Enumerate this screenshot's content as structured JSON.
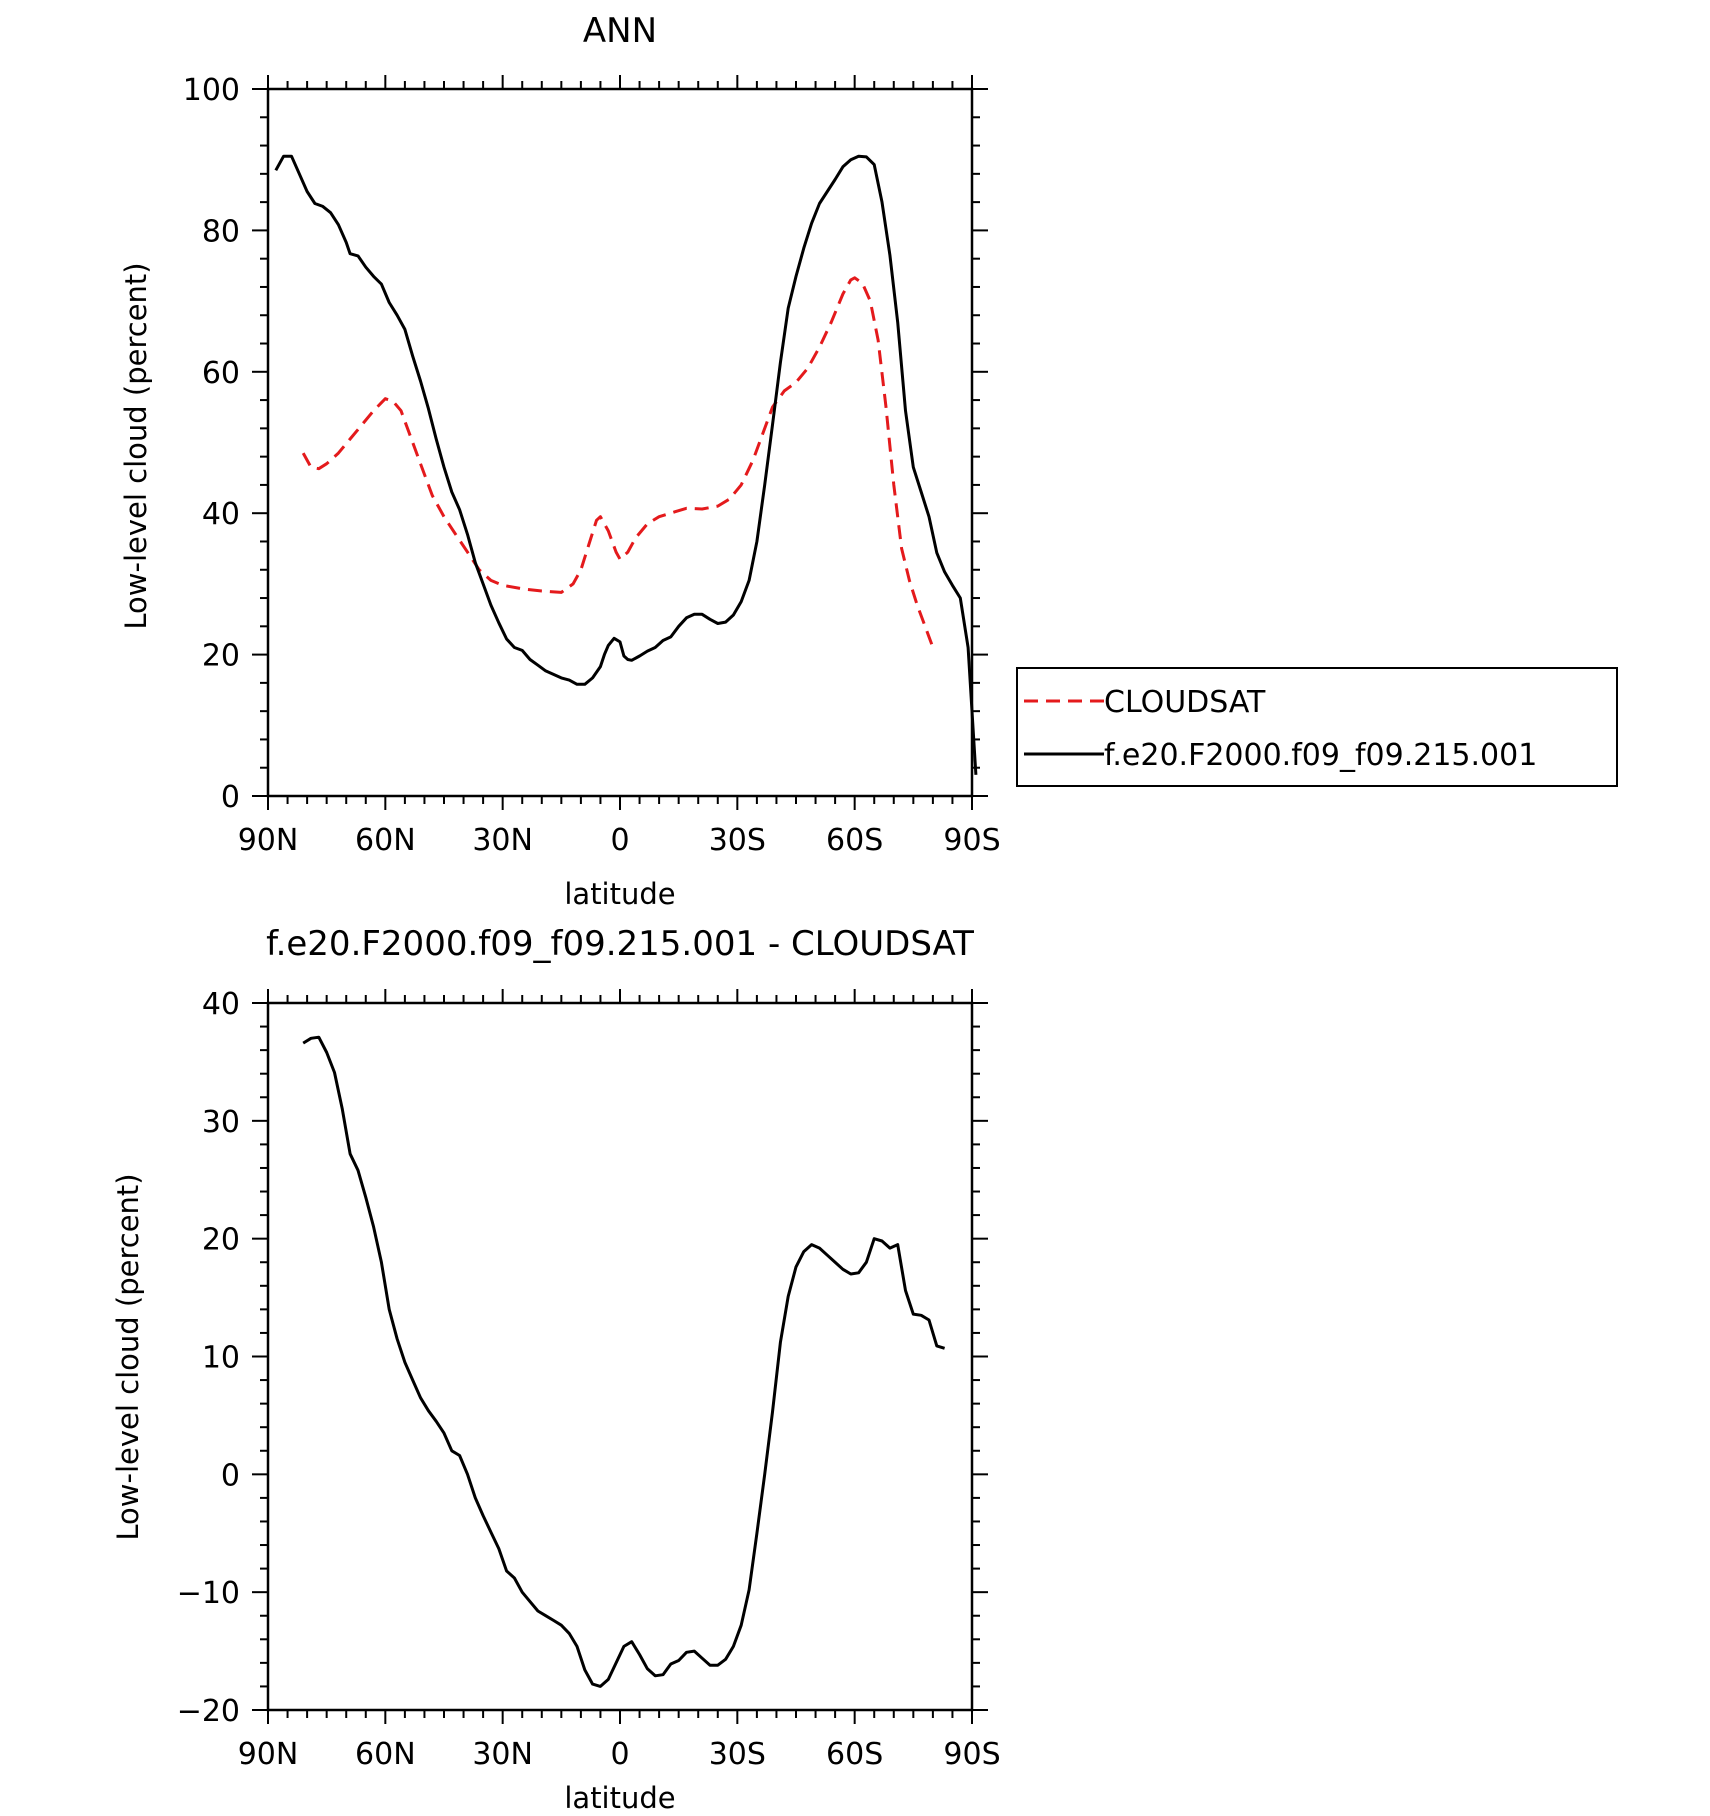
{
  "chart_data": [
    {
      "type": "line",
      "title": "ANN",
      "xlabel": "latitude",
      "ylabel": "Low-level cloud (percent)",
      "xlim": [
        -90,
        90
      ],
      "ylim": [
        0,
        100
      ],
      "x_axis_note": "latitude runs from 90N (left) to 90S (right); values below are latitude in degrees, north positive",
      "xticks": [
        90,
        60,
        30,
        0,
        -30,
        -60,
        -90
      ],
      "xtick_labels": [
        "90N",
        "60N",
        "30N",
        "0",
        "30S",
        "60S",
        "90S"
      ],
      "yticks": [
        0,
        20,
        40,
        60,
        80,
        100
      ],
      "ytick_labels": [
        "0",
        "20",
        "40",
        "60",
        "80",
        "100"
      ],
      "legend_position": "right-outside",
      "series": [
        {
          "name": "CLOUDSAT",
          "color": "#e41a1c",
          "dash": "dashed",
          "points": [
            [
              81,
              48.5
            ],
            [
              79,
              46.5
            ],
            [
              77,
              46.3
            ],
            [
              75,
              47
            ],
            [
              72,
              48.5
            ],
            [
              69,
              50.5
            ],
            [
              66,
              52.5
            ],
            [
              63,
              54.5
            ],
            [
              60,
              56.2
            ],
            [
              58,
              55.8
            ],
            [
              56,
              54.5
            ],
            [
              54,
              51.5
            ],
            [
              51,
              47
            ],
            [
              48,
              42.5
            ],
            [
              45,
              39.5
            ],
            [
              42,
              37
            ],
            [
              39,
              34.5
            ],
            [
              36,
              32
            ],
            [
              33,
              30.5
            ],
            [
              30,
              29.8
            ],
            [
              25,
              29.3
            ],
            [
              20,
              29
            ],
            [
              15,
              28.8
            ],
            [
              12,
              30
            ],
            [
              10,
              32
            ],
            [
              8,
              35.5
            ],
            [
              6,
              39
            ],
            [
              5,
              39.5
            ],
            [
              3,
              37.5
            ],
            [
              1,
              34.5
            ],
            [
              0,
              33.5
            ],
            [
              -2,
              34.5
            ],
            [
              -4,
              36.5
            ],
            [
              -7,
              38.5
            ],
            [
              -10,
              39.5
            ],
            [
              -14,
              40.2
            ],
            [
              -17,
              40.7
            ],
            [
              -21,
              40.6
            ],
            [
              -25,
              41
            ],
            [
              -28,
              42
            ],
            [
              -31,
              44
            ],
            [
              -34,
              47.5
            ],
            [
              -37,
              52
            ],
            [
              -39,
              55
            ],
            [
              -42,
              57.3
            ],
            [
              -45,
              58.5
            ],
            [
              -48,
              60.5
            ],
            [
              -51,
              63.5
            ],
            [
              -54,
              67
            ],
            [
              -57,
              71
            ],
            [
              -59,
              73
            ],
            [
              -60,
              73.3
            ],
            [
              -62,
              72.5
            ],
            [
              -64,
              70
            ],
            [
              -66,
              64.5
            ],
            [
              -68,
              55
            ],
            [
              -70,
              44
            ],
            [
              -72,
              35
            ],
            [
              -74,
              30.5
            ],
            [
              -76,
              27
            ],
            [
              -78,
              24
            ],
            [
              -80,
              21
            ]
          ]
        },
        {
          "name": "f.e20.F2000.f09_f09.215.001",
          "color": "#000000",
          "dash": "solid",
          "points": [
            [
              88,
              88.5
            ],
            [
              86,
              90.5
            ],
            [
              84,
              90.5
            ],
            [
              82,
              88
            ],
            [
              80,
              85.5
            ],
            [
              78,
              83.8
            ],
            [
              76,
              83.4
            ],
            [
              74,
              82.5
            ],
            [
              72,
              80.8
            ],
            [
              70,
              78.3
            ],
            [
              69,
              76.7
            ],
            [
              67,
              76.4
            ],
            [
              65,
              74.8
            ],
            [
              63,
              73.5
            ],
            [
              61,
              72.4
            ],
            [
              59,
              69.8
            ],
            [
              57,
              68
            ],
            [
              55,
              66
            ],
            [
              53,
              62.2
            ],
            [
              51,
              58.7
            ],
            [
              49,
              54.8
            ],
            [
              47,
              50.5
            ],
            [
              45,
              46.5
            ],
            [
              43,
              43
            ],
            [
              41,
              40.5
            ],
            [
              39,
              37
            ],
            [
              37,
              33
            ],
            [
              35,
              30
            ],
            [
              33,
              27
            ],
            [
              31,
              24.5
            ],
            [
              29,
              22.2
            ],
            [
              27,
              21
            ],
            [
              25,
              20.6
            ],
            [
              23,
              19.3
            ],
            [
              21,
              18.5
            ],
            [
              19,
              17.7
            ],
            [
              17,
              17.2
            ],
            [
              15,
              16.7
            ],
            [
              13,
              16.4
            ],
            [
              11,
              15.8
            ],
            [
              9,
              15.8
            ],
            [
              7,
              16.7
            ],
            [
              5,
              18.3
            ],
            [
              4,
              20
            ],
            [
              3,
              21.3
            ],
            [
              1.5,
              22.3
            ],
            [
              0,
              21.8
            ],
            [
              -1,
              19.8
            ],
            [
              -2,
              19.3
            ],
            [
              -3,
              19.2
            ],
            [
              -5,
              19.8
            ],
            [
              -7,
              20.5
            ],
            [
              -9,
              21
            ],
            [
              -11,
              22
            ],
            [
              -13,
              22.5
            ],
            [
              -15,
              24
            ],
            [
              -17,
              25.2
            ],
            [
              -19,
              25.7
            ],
            [
              -21,
              25.7
            ],
            [
              -23,
              25
            ],
            [
              -25,
              24.4
            ],
            [
              -27,
              24.6
            ],
            [
              -29,
              25.6
            ],
            [
              -31,
              27.5
            ],
            [
              -33,
              30.5
            ],
            [
              -35,
              36
            ],
            [
              -37,
              44
            ],
            [
              -39,
              52.5
            ],
            [
              -41,
              61.3
            ],
            [
              -43,
              69
            ],
            [
              -45,
              73.5
            ],
            [
              -47,
              77.5
            ],
            [
              -49,
              81
            ],
            [
              -51,
              83.8
            ],
            [
              -53,
              85.5
            ],
            [
              -55,
              87.2
            ],
            [
              -57,
              89
            ],
            [
              -59,
              90
            ],
            [
              -61,
              90.5
            ],
            [
              -63,
              90.4
            ],
            [
              -65,
              89.3
            ],
            [
              -67,
              84
            ],
            [
              -69,
              76.5
            ],
            [
              -71,
              67
            ],
            [
              -73,
              54.5
            ],
            [
              -75,
              46.5
            ],
            [
              -77,
              43
            ],
            [
              -79,
              39.5
            ],
            [
              -81,
              34.4
            ],
            [
              -83,
              31.7
            ],
            [
              -85,
              29.8
            ],
            [
              -87,
              28
            ],
            [
              -89,
              21
            ],
            [
              -91,
              3
            ]
          ]
        }
      ]
    },
    {
      "type": "line",
      "title": "f.e20.F2000.f09_f09.215.001 - CLOUDSAT",
      "xlabel": "latitude",
      "ylabel": "Low-level cloud (percent)",
      "xlim": [
        -90,
        90
      ],
      "ylim": [
        -20,
        40
      ],
      "xticks": [
        90,
        60,
        30,
        0,
        -30,
        -60,
        -90
      ],
      "xtick_labels": [
        "90N",
        "60N",
        "30N",
        "0",
        "30S",
        "60S",
        "90S"
      ],
      "yticks": [
        -20,
        -10,
        0,
        10,
        20,
        30,
        40
      ],
      "ytick_labels": [
        "−20",
        "−10",
        "0",
        "10",
        "20",
        "30",
        "40"
      ],
      "series": [
        {
          "name": "",
          "color": "#000000",
          "dash": "solid",
          "points": [
            [
              81,
              36.6
            ],
            [
              79,
              37
            ],
            [
              77,
              37.1
            ],
            [
              75,
              35.8
            ],
            [
              73,
              34.1
            ],
            [
              71,
              31
            ],
            [
              69,
              27.2
            ],
            [
              67,
              25.8
            ],
            [
              65,
              23.5
            ],
            [
              63,
              21
            ],
            [
              61,
              18
            ],
            [
              59,
              14
            ],
            [
              57,
              11.5
            ],
            [
              55,
              9.5
            ],
            [
              53,
              8
            ],
            [
              51,
              6.5
            ],
            [
              49,
              5.4
            ],
            [
              47,
              4.5
            ],
            [
              45,
              3.5
            ],
            [
              43,
              2
            ],
            [
              41,
              1.6
            ],
            [
              39,
              0
            ],
            [
              37,
              -2
            ],
            [
              35,
              -3.5
            ],
            [
              33,
              -4.9
            ],
            [
              31,
              -6.3
            ],
            [
              29,
              -8.2
            ],
            [
              27,
              -8.8
            ],
            [
              25,
              -10
            ],
            [
              23,
              -10.8
            ],
            [
              21,
              -11.6
            ],
            [
              19,
              -12
            ],
            [
              17,
              -12.4
            ],
            [
              15,
              -12.8
            ],
            [
              13,
              -13.5
            ],
            [
              11,
              -14.6
            ],
            [
              9,
              -16.6
            ],
            [
              7,
              -17.8
            ],
            [
              5,
              -18
            ],
            [
              3,
              -17.4
            ],
            [
              1,
              -16
            ],
            [
              -1,
              -14.6
            ],
            [
              -3,
              -14.2
            ],
            [
              -5,
              -15.3
            ],
            [
              -7,
              -16.5
            ],
            [
              -9,
              -17.1
            ],
            [
              -11,
              -17
            ],
            [
              -13,
              -16.1
            ],
            [
              -15,
              -15.8
            ],
            [
              -17,
              -15.1
            ],
            [
              -19,
              -15
            ],
            [
              -21,
              -15.6
            ],
            [
              -23,
              -16.2
            ],
            [
              -25,
              -16.2
            ],
            [
              -27,
              -15.7
            ],
            [
              -29,
              -14.6
            ],
            [
              -31,
              -12.8
            ],
            [
              -33,
              -9.8
            ],
            [
              -35,
              -5
            ],
            [
              -37,
              0
            ],
            [
              -39,
              5.3
            ],
            [
              -41,
              11.2
            ],
            [
              -43,
              15.1
            ],
            [
              -45,
              17.6
            ],
            [
              -47,
              18.9
            ],
            [
              -49,
              19.5
            ],
            [
              -51,
              19.2
            ],
            [
              -53,
              18.6
            ],
            [
              -55,
              18
            ],
            [
              -57,
              17.4
            ],
            [
              -59,
              17
            ],
            [
              -61,
              17.1
            ],
            [
              -63,
              18
            ],
            [
              -65,
              20
            ],
            [
              -67,
              19.8
            ],
            [
              -69,
              19.2
            ],
            [
              -71,
              19.5
            ],
            [
              -73,
              15.6
            ],
            [
              -75,
              13.6
            ],
            [
              -77,
              13.5
            ],
            [
              -79,
              13.1
            ],
            [
              -81,
              10.9
            ],
            [
              -83,
              10.7
            ]
          ]
        }
      ]
    }
  ]
}
